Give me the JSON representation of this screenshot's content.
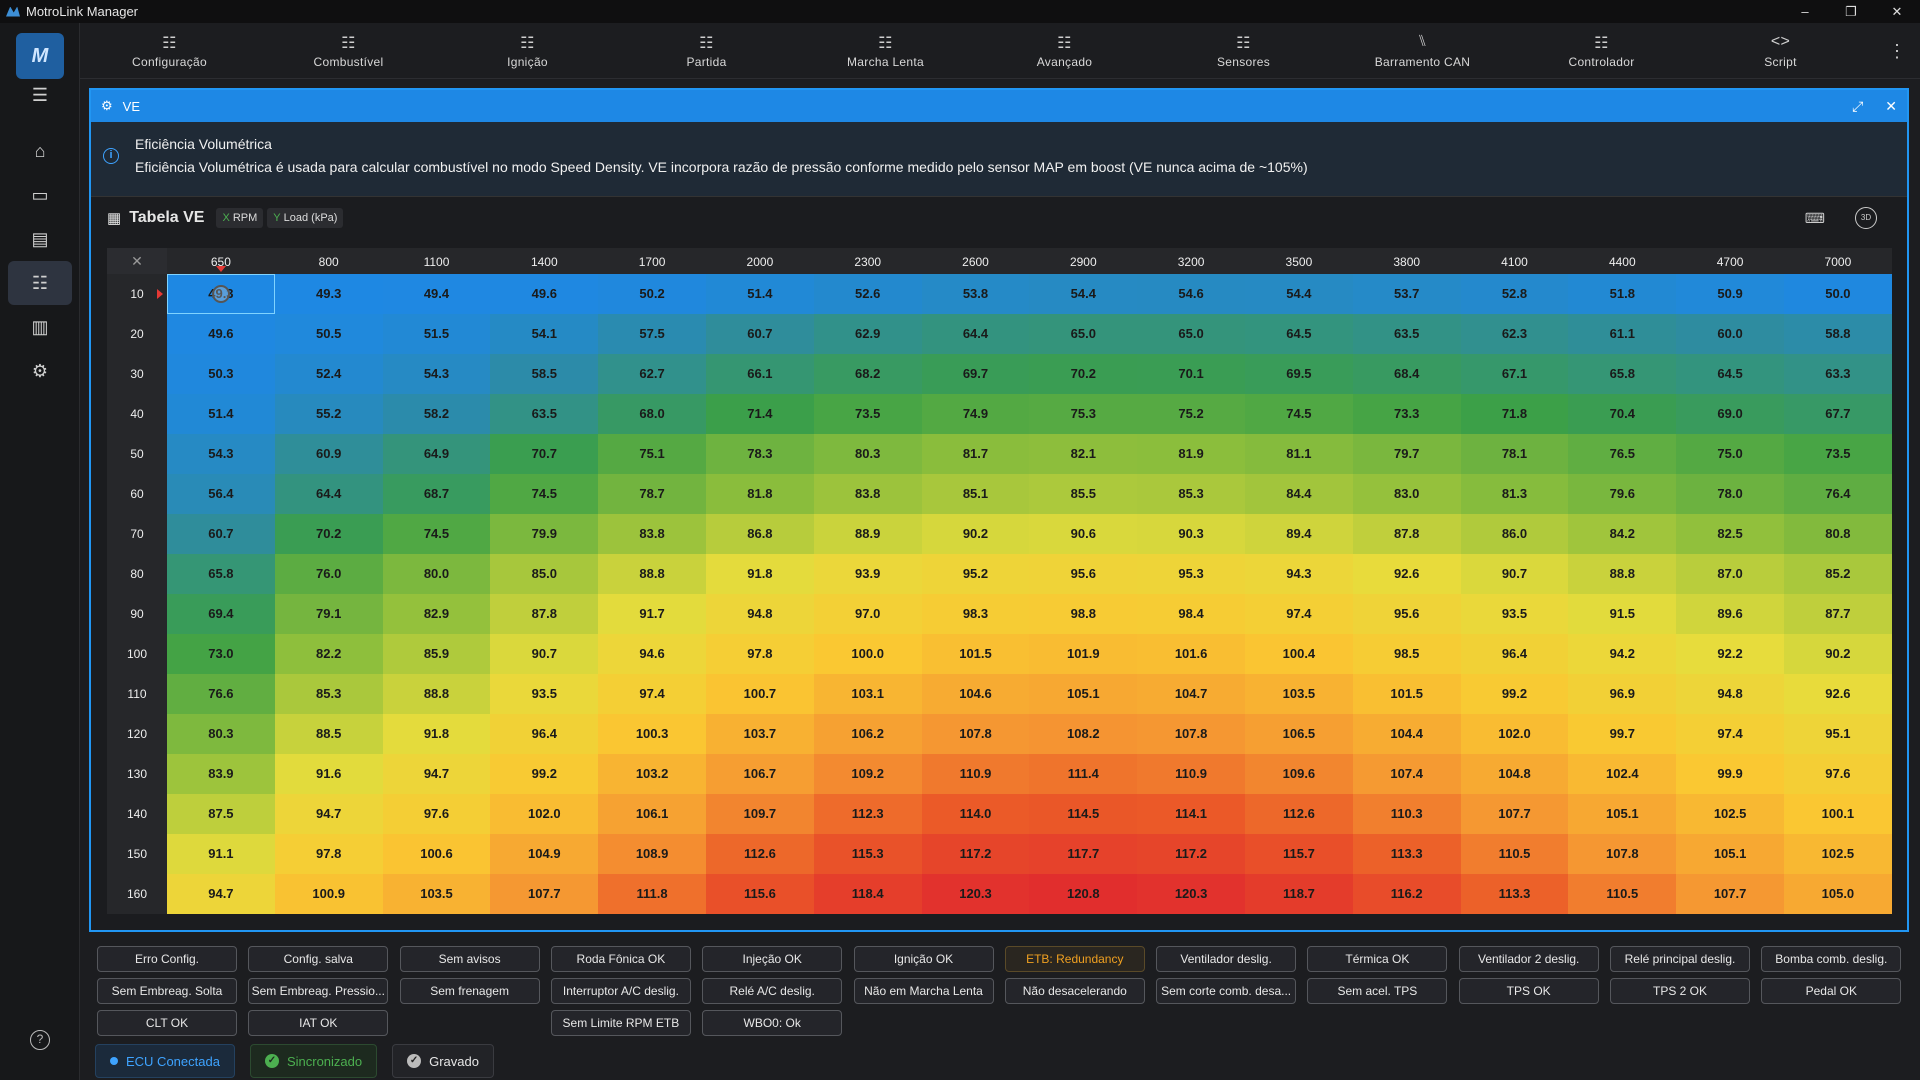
{
  "window": {
    "title": "MotroLink Manager",
    "controls": [
      "–",
      "❐",
      "✕"
    ]
  },
  "sidebar": {
    "logo": "M",
    "items": [
      {
        "name": "menu",
        "icon": "hamburger-icon",
        "glyph": "☰"
      },
      {
        "name": "home",
        "icon": "home-icon",
        "glyph": "⌂"
      },
      {
        "name": "folder",
        "icon": "folder-icon",
        "glyph": "▭"
      },
      {
        "name": "logs",
        "icon": "list-icon",
        "glyph": "▤"
      },
      {
        "name": "tune",
        "icon": "sliders-icon",
        "glyph": "☷"
      },
      {
        "name": "dashboard",
        "icon": "gauge-icon",
        "glyph": "▥"
      },
      {
        "name": "settings",
        "icon": "gear-icon",
        "glyph": "⚙"
      }
    ],
    "help_glyph": "?"
  },
  "nav": [
    {
      "label": "Configuração",
      "icon": "sliders-icon",
      "glyph": "☷"
    },
    {
      "label": "Combustível",
      "icon": "sliders-icon",
      "glyph": "☷"
    },
    {
      "label": "Ignição",
      "icon": "sliders-icon",
      "glyph": "☷"
    },
    {
      "label": "Partida",
      "icon": "sliders-icon",
      "glyph": "☷"
    },
    {
      "label": "Marcha Lenta",
      "icon": "sliders-icon",
      "glyph": "☷"
    },
    {
      "label": "Avançado",
      "icon": "sliders-icon",
      "glyph": "☷"
    },
    {
      "label": "Sensores",
      "icon": "sliders-icon",
      "glyph": "☷"
    },
    {
      "label": "Barramento CAN",
      "icon": "can-bus-icon",
      "glyph": "⑊"
    },
    {
      "label": "Controlador",
      "icon": "sliders-icon",
      "glyph": "☷"
    },
    {
      "label": "Script",
      "icon": "code-icon",
      "glyph": "<>"
    }
  ],
  "panel": {
    "title": "VE",
    "info_title": "Eficiência Volumétrica",
    "info_text": "Eficiência Volumétrica é usada para calcular combustível no modo Speed Density. VE incorpora razão de pressão conforme medido pelo sensor MAP em boost (VE nunca acima de ~105%)",
    "table_title": "Tabela VE",
    "x_axis_letter": "X",
    "x_axis_label": "RPM",
    "y_axis_letter": "Y",
    "y_axis_label": "Load (kPa)",
    "right_icon_label": "3D"
  },
  "table": {
    "cols": [
      "650",
      "800",
      "1100",
      "1400",
      "1700",
      "2000",
      "2300",
      "2600",
      "2900",
      "3200",
      "3500",
      "3800",
      "4100",
      "4400",
      "4700",
      "7000"
    ],
    "rows": [
      "10",
      "20",
      "30",
      "40",
      "50",
      "60",
      "70",
      "80",
      "90",
      "100",
      "110",
      "120",
      "130",
      "140",
      "150",
      "160"
    ],
    "values": [
      [
        "49.3",
        "49.3",
        "49.4",
        "49.6",
        "50.2",
        "51.4",
        "52.6",
        "53.8",
        "54.4",
        "54.6",
        "54.4",
        "53.7",
        "52.8",
        "51.8",
        "50.9",
        "50.0"
      ],
      [
        "49.6",
        "50.5",
        "51.5",
        "54.1",
        "57.5",
        "60.7",
        "62.9",
        "64.4",
        "65.0",
        "65.0",
        "64.5",
        "63.5",
        "62.3",
        "61.1",
        "60.0",
        "58.8"
      ],
      [
        "50.3",
        "52.4",
        "54.3",
        "58.5",
        "62.7",
        "66.1",
        "68.2",
        "69.7",
        "70.2",
        "70.1",
        "69.5",
        "68.4",
        "67.1",
        "65.8",
        "64.5",
        "63.3"
      ],
      [
        "51.4",
        "55.2",
        "58.2",
        "63.5",
        "68.0",
        "71.4",
        "73.5",
        "74.9",
        "75.3",
        "75.2",
        "74.5",
        "73.3",
        "71.8",
        "70.4",
        "69.0",
        "67.7"
      ],
      [
        "54.3",
        "60.9",
        "64.9",
        "70.7",
        "75.1",
        "78.3",
        "80.3",
        "81.7",
        "82.1",
        "81.9",
        "81.1",
        "79.7",
        "78.1",
        "76.5",
        "75.0",
        "73.5"
      ],
      [
        "56.4",
        "64.4",
        "68.7",
        "74.5",
        "78.7",
        "81.8",
        "83.8",
        "85.1",
        "85.5",
        "85.3",
        "84.4",
        "83.0",
        "81.3",
        "79.6",
        "78.0",
        "76.4"
      ],
      [
        "60.7",
        "70.2",
        "74.5",
        "79.9",
        "83.8",
        "86.8",
        "88.9",
        "90.2",
        "90.6",
        "90.3",
        "89.4",
        "87.8",
        "86.0",
        "84.2",
        "82.5",
        "80.8"
      ],
      [
        "65.8",
        "76.0",
        "80.0",
        "85.0",
        "88.8",
        "91.8",
        "93.9",
        "95.2",
        "95.6",
        "95.3",
        "94.3",
        "92.6",
        "90.7",
        "88.8",
        "87.0",
        "85.2"
      ],
      [
        "69.4",
        "79.1",
        "82.9",
        "87.8",
        "91.7",
        "94.8",
        "97.0",
        "98.3",
        "98.8",
        "98.4",
        "97.4",
        "95.6",
        "93.5",
        "91.5",
        "89.6",
        "87.7"
      ],
      [
        "73.0",
        "82.2",
        "85.9",
        "90.7",
        "94.6",
        "97.8",
        "100.0",
        "101.5",
        "101.9",
        "101.6",
        "100.4",
        "98.5",
        "96.4",
        "94.2",
        "92.2",
        "90.2"
      ],
      [
        "76.6",
        "85.3",
        "88.8",
        "93.5",
        "97.4",
        "100.7",
        "103.1",
        "104.6",
        "105.1",
        "104.7",
        "103.5",
        "101.5",
        "99.2",
        "96.9",
        "94.8",
        "92.6"
      ],
      [
        "80.3",
        "88.5",
        "91.8",
        "96.4",
        "100.3",
        "103.7",
        "106.2",
        "107.8",
        "108.2",
        "107.8",
        "106.5",
        "104.4",
        "102.0",
        "99.7",
        "97.4",
        "95.1"
      ],
      [
        "83.9",
        "91.6",
        "94.7",
        "99.2",
        "103.2",
        "106.7",
        "109.2",
        "110.9",
        "111.4",
        "110.9",
        "109.6",
        "107.4",
        "104.8",
        "102.4",
        "99.9",
        "97.6"
      ],
      [
        "87.5",
        "94.7",
        "97.6",
        "102.0",
        "106.1",
        "109.7",
        "112.3",
        "114.0",
        "114.5",
        "114.1",
        "112.6",
        "110.3",
        "107.7",
        "105.1",
        "102.5",
        "100.1"
      ],
      [
        "91.1",
        "97.8",
        "100.6",
        "104.9",
        "108.9",
        "112.6",
        "115.3",
        "117.2",
        "117.7",
        "117.2",
        "115.7",
        "113.3",
        "110.5",
        "107.8",
        "105.1",
        "102.5"
      ],
      [
        "94.7",
        "100.9",
        "103.5",
        "107.7",
        "111.8",
        "115.6",
        "118.4",
        "120.3",
        "120.8",
        "120.3",
        "118.7",
        "116.2",
        "113.3",
        "110.5",
        "107.7",
        "105.0"
      ]
    ],
    "selected": {
      "row": 0,
      "col": 0
    }
  },
  "status_badges": [
    [
      "Erro Config.",
      "Config. salva",
      "Sem avisos",
      "Roda Fônica OK",
      "Injeção OK",
      "Ignição OK",
      "ETB: Redundancy",
      "Ventilador deslig.",
      "Térmica OK",
      "Ventilador 2 deslig.",
      "Relé principal deslig.",
      "Bomba comb. deslig."
    ],
    [
      "Sem Embreag. Solta",
      "Sem Embreag. Pressio...",
      "Sem frenagem",
      "Interruptor A/C deslig.",
      "Relé A/C deslig.",
      "Não em Marcha Lenta",
      "Não desacelerando",
      "Sem corte comb. desa...",
      "Sem acel. TPS",
      "TPS OK",
      "TPS 2 OK",
      "Pedal OK"
    ],
    [
      "CLT OK",
      "IAT OK",
      "",
      "Sem Limite RPM ETB",
      "WBO0: Ok"
    ]
  ],
  "warn_badge": "ETB: Redundancy",
  "bottom": {
    "connected": "ECU Conectada",
    "synced": "Sincronizado",
    "saved": "Gravado"
  }
}
